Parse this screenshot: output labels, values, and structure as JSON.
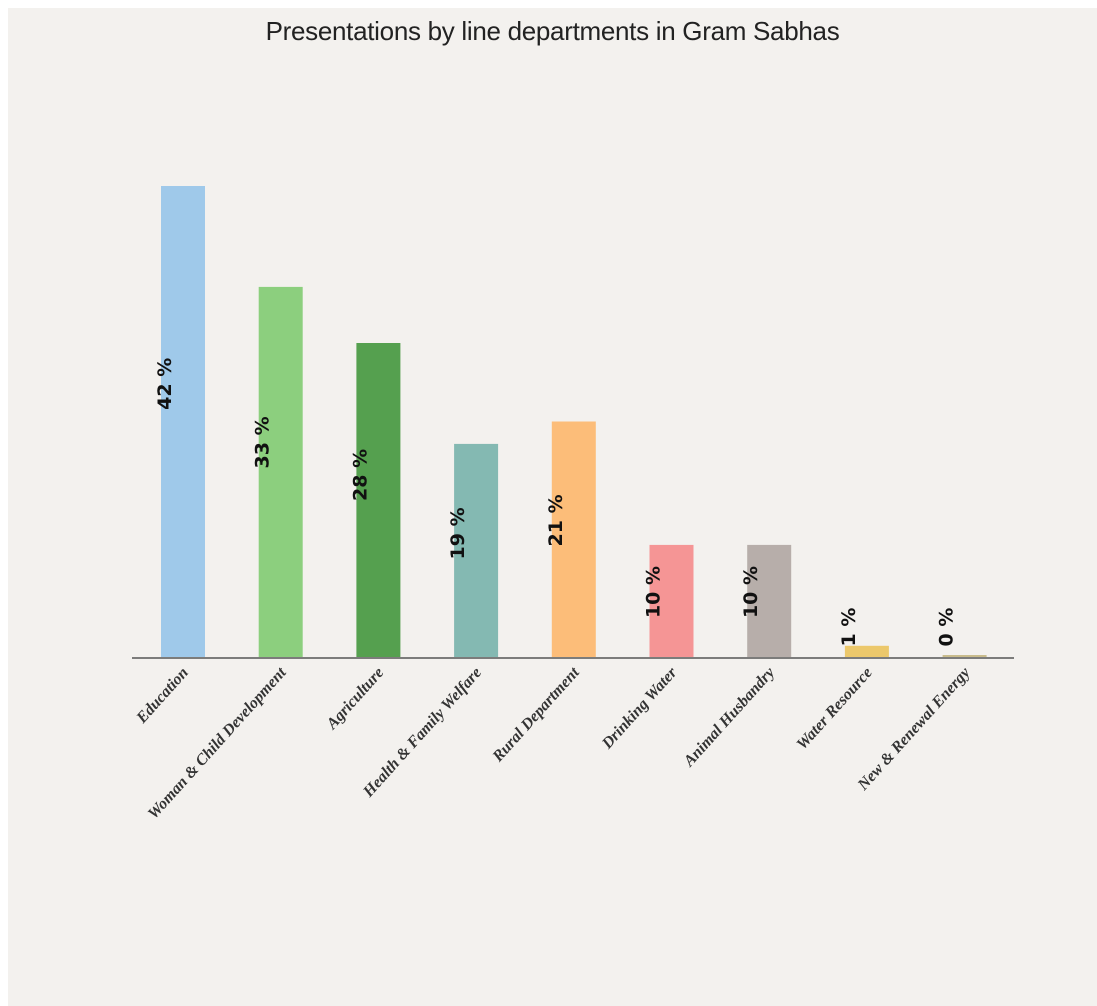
{
  "chart_data": {
    "type": "bar",
    "title": "Presentations by line departments in Gram Sabhas",
    "categories": [
      "Education",
      "Woman & Child Development",
      "Agriculture",
      "Health & Family Welfare",
      "Rural Department",
      "Drinking Water",
      "Animal Husbandry",
      "Water Resource",
      "New & Renewal Energy"
    ],
    "values": [
      42,
      33,
      28,
      19,
      21,
      10,
      10,
      1,
      0
    ],
    "data_labels": [
      "42 %",
      "33 %",
      "28 %",
      "19 %",
      "21 %",
      "10 %",
      "10 %",
      "1 %",
      "0 %"
    ],
    "colors": [
      "#9fc9ea",
      "#8ccf7e",
      "#55a04f",
      "#84b9b2",
      "#fcbd79",
      "#f59595",
      "#b7aeaa",
      "#ecc86b",
      "#c9bc8c"
    ],
    "xlabel": "",
    "ylabel": "",
    "ylim": [
      0,
      42
    ],
    "grid": false,
    "legend": "none"
  }
}
